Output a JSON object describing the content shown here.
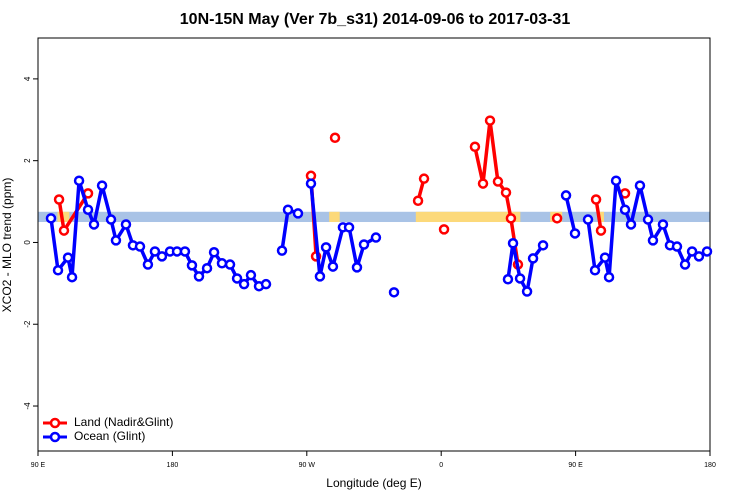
{
  "chart_data": {
    "type": "line",
    "title": "10N-15N May (Ver 7b_s31)   2014-09-06 to 2017-03-31",
    "x_label": "Longitude (deg E)",
    "y_label": "XCO2 - MLO trend (ppm)",
    "xlim": [
      90,
      540
    ],
    "ylim": [
      -5.1,
      5
    ],
    "xticks": [
      {
        "value": 90,
        "label": "90 E"
      },
      {
        "value": 180,
        "label": "180"
      },
      {
        "value": 270,
        "label": "90 W"
      },
      {
        "value": 360,
        "label": "0"
      },
      {
        "value": 450,
        "label": "90 E"
      },
      {
        "value": 540,
        "label": "180"
      }
    ],
    "yticks": [
      -4,
      -2,
      0,
      2,
      4
    ],
    "legend": "bottom-left",
    "band": {
      "lower": 0.5,
      "upper": 0.75,
      "color": "#a9c3e6",
      "highlight_color": "#fcd97a",
      "highlights": [
        [
          103,
          111
        ],
        [
          285,
          292
        ],
        [
          343,
          413
        ],
        [
          433,
          441
        ],
        [
          465,
          469
        ]
      ]
    },
    "series": [
      {
        "name": "Land (Nadir&Glint)",
        "color": "#ff0000",
        "x": [
          104.1,
          107.4,
          123.5,
          null,
          272.8,
          276.2,
          null,
          288.9,
          null,
          344.5,
          348.5,
          null,
          361.9,
          null,
          382.6,
          388.0,
          392.7,
          398.0,
          403.4,
          406.7,
          411.4,
          null,
          437.6,
          null,
          463.7,
          467.0,
          null,
          483.1
        ],
        "values": [
          1.05,
          0.29,
          1.2,
          null,
          1.63,
          -0.34,
          null,
          2.56,
          null,
          1.02,
          1.56,
          null,
          0.32,
          null,
          2.34,
          1.44,
          2.98,
          1.49,
          1.22,
          0.59,
          -0.54,
          null,
          0.59,
          null,
          1.05,
          0.29,
          null,
          1.2
        ]
      },
      {
        "name": "Ocean (Glint)",
        "color": "#0000ff",
        "x": [
          98.7,
          103.4,
          110.1,
          112.8,
          117.5,
          123.5,
          127.5,
          132.9,
          138.9,
          142.2,
          148.9,
          153.6,
          158.3,
          163.6,
          168.3,
          173.0,
          178.4,
          183.1,
          188.4,
          193.1,
          197.8,
          203.2,
          207.9,
          213.2,
          218.6,
          223.3,
          228.0,
          232.6,
          238.0,
          242.7,
          null,
          253.4,
          257.4,
          264.1,
          null,
          272.8,
          278.8,
          282.9,
          287.5,
          294.2,
          298.3,
          303.6,
          308.3,
          316.3,
          null,
          328.4,
          null,
          404.7,
          408.1,
          412.8,
          417.5,
          421.5,
          428.2,
          null,
          443.6,
          449.6,
          null,
          458.3,
          463.0,
          469.7,
          472.4,
          477.1,
          483.1,
          487.1,
          493.1,
          498.5,
          501.8,
          508.5,
          513.2,
          517.9,
          523.3,
          528.0,
          532.6,
          538.0
        ],
        "values": [
          0.59,
          -0.68,
          -0.37,
          -0.85,
          1.51,
          0.8,
          0.44,
          1.39,
          0.56,
          0.05,
          0.44,
          -0.07,
          -0.1,
          -0.54,
          -0.22,
          -0.34,
          -0.22,
          -0.22,
          -0.22,
          -0.56,
          -0.83,
          -0.63,
          -0.24,
          -0.51,
          -0.54,
          -0.88,
          -1.02,
          -0.8,
          -1.07,
          -1.02,
          null,
          -0.2,
          0.8,
          0.71,
          null,
          1.44,
          -0.83,
          -0.12,
          -0.59,
          0.37,
          0.37,
          -0.61,
          -0.05,
          0.12,
          null,
          -1.22,
          null,
          -0.9,
          -0.02,
          -0.88,
          -1.2,
          -0.39,
          -0.07,
          null,
          1.15,
          0.22,
          null,
          0.56,
          -0.68,
          -0.37,
          -0.85,
          1.51,
          0.8,
          0.44,
          1.39,
          0.56,
          0.05,
          0.44,
          -0.07,
          -0.1,
          -0.54,
          -0.22,
          -0.34,
          -0.22
        ]
      }
    ]
  }
}
